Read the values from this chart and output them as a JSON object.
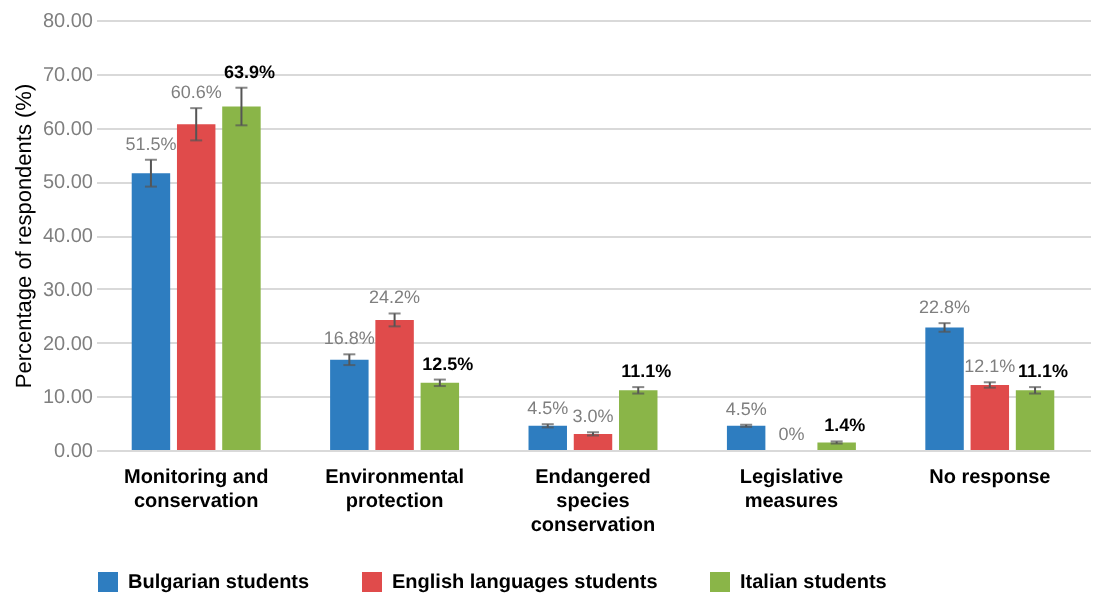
{
  "chart_data": {
    "type": "bar",
    "ylabel": "Percentage of respondents (%)",
    "categories": [
      "Monitoring and conservation",
      "Environmental protection",
      "Endangered species conservation",
      "Legislative measures",
      "No response"
    ],
    "series": [
      {
        "name": "Bulgarian students",
        "color": "#2e7dc0",
        "values": [
          51.5,
          16.8,
          4.5,
          4.5,
          22.8
        ],
        "errors": [
          2.5,
          1,
          0.3,
          0.2,
          0.8
        ],
        "value_labels": [
          "51.5%",
          "16.8%",
          "4.5%",
          "4.5%",
          "22.8%"
        ]
      },
      {
        "name": "English languages students",
        "color": "#e04b4b",
        "values": [
          60.6,
          24.2,
          3.0,
          0,
          12.1
        ],
        "errors": [
          3,
          1.2,
          0.3,
          null,
          0.5
        ],
        "value_labels": [
          "60.6%",
          "24.2%",
          "3.0%",
          "0%",
          "12.1%"
        ]
      },
      {
        "name": "Italian students",
        "color": "#8ab548",
        "values": [
          63.9,
          12.5,
          11.1,
          1.4,
          11.1
        ],
        "errors": [
          3.5,
          0.6,
          0.6,
          0.2,
          0.6
        ],
        "value_labels": [
          "63.9%",
          "12.5%",
          "11.1%",
          "1.4%",
          "11.1%"
        ]
      }
    ],
    "ylim": [
      0,
      80
    ],
    "yticks": [
      {
        "value": 0,
        "label": "0.00"
      },
      {
        "value": 10,
        "label": "10.00"
      },
      {
        "value": 20,
        "label": "20.00"
      },
      {
        "value": 30,
        "label": "30.00"
      },
      {
        "value": 40,
        "label": "40.00"
      },
      {
        "value": 50,
        "label": "50.00"
      },
      {
        "value": 60,
        "label": "60.00"
      },
      {
        "value": 70,
        "label": "70.00"
      },
      {
        "value": 80,
        "label": "80.00"
      }
    ],
    "grid": "y",
    "legend": "bottom"
  }
}
